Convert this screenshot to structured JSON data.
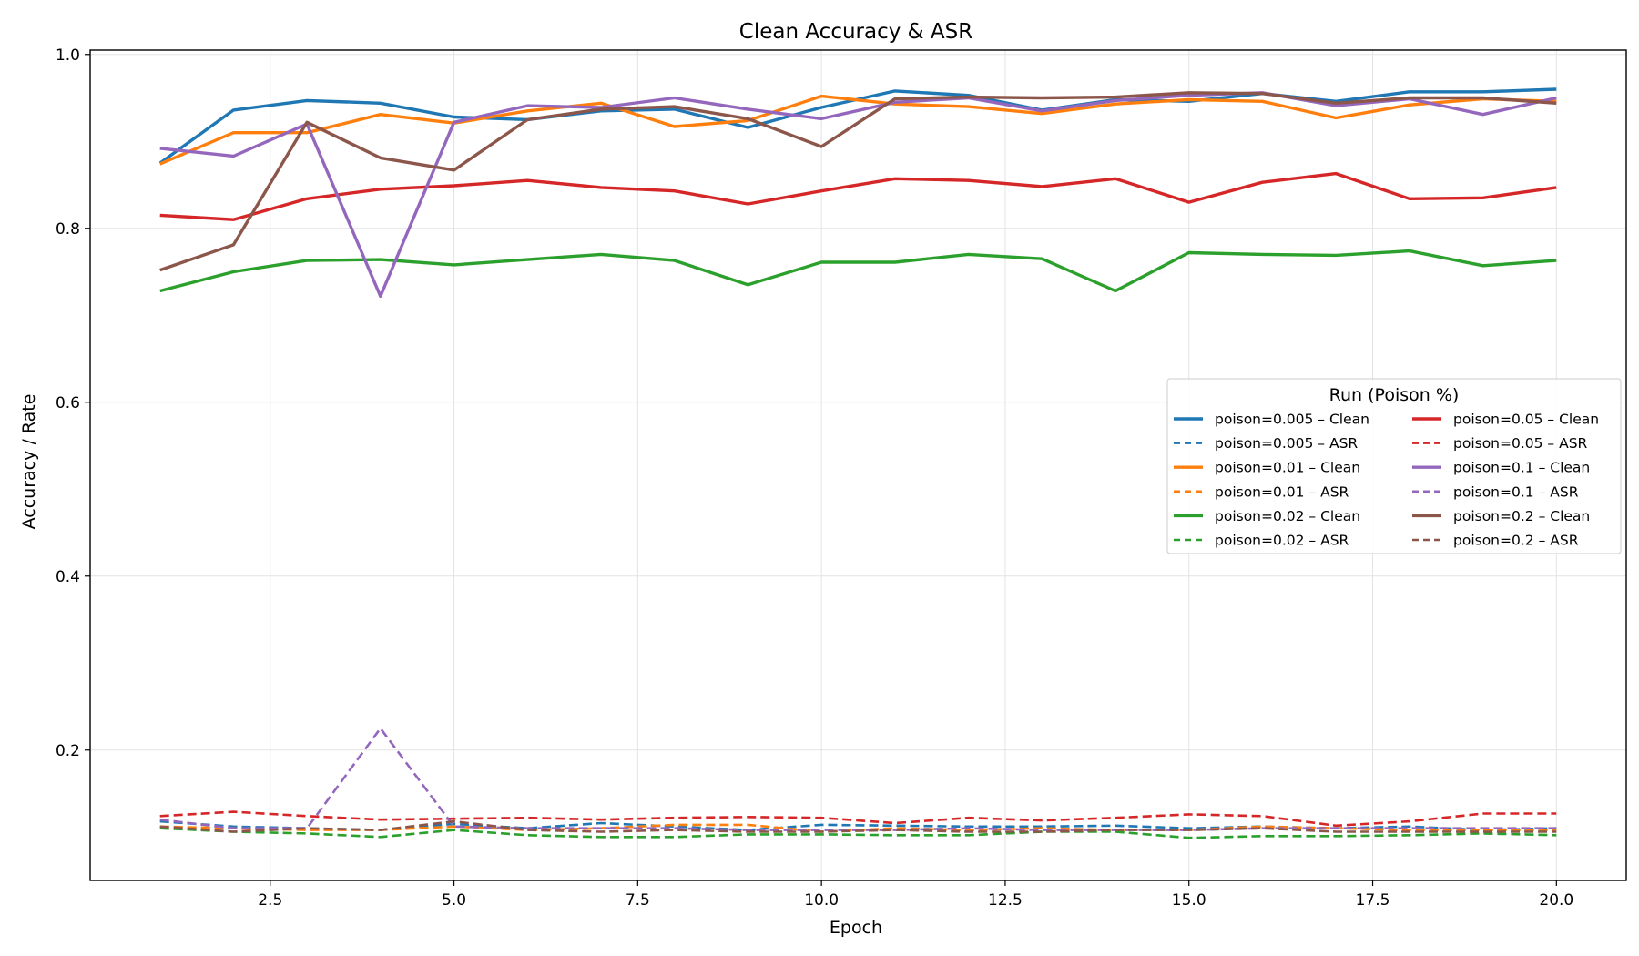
{
  "chart_data": {
    "type": "line",
    "title": "Clean Accuracy & ASR",
    "xlabel": "Epoch",
    "ylabel": "Accuracy / Rate",
    "xlim": [
      0.05,
      20.95
    ],
    "ylim": [
      0.05,
      1.005
    ],
    "xticks": [
      2.5,
      5.0,
      7.5,
      10.0,
      12.5,
      15.0,
      17.5,
      20.0
    ],
    "xtick_labels": [
      "2.5",
      "5.0",
      "7.5",
      "10.0",
      "12.5",
      "15.0",
      "17.5",
      "20.0"
    ],
    "yticks": [
      0.2,
      0.4,
      0.6,
      0.8,
      1.0
    ],
    "ytick_labels": [
      "0.2",
      "0.4",
      "0.6",
      "0.8",
      "1.0"
    ],
    "grid": true,
    "legend_title": "Run (Poison %)",
    "legend_position": "center-right",
    "x": [
      1,
      2,
      3,
      4,
      5,
      6,
      7,
      8,
      9,
      10,
      11,
      12,
      13,
      14,
      15,
      16,
      17,
      18,
      19,
      20
    ],
    "series": [
      {
        "name": "poison=0.005 – Clean",
        "color": "#1f77b4",
        "dash": "solid",
        "values": [
          0.875,
          0.936,
          0.947,
          0.944,
          0.928,
          0.925,
          0.935,
          0.937,
          0.916,
          0.939,
          0.958,
          0.953,
          0.936,
          0.948,
          0.946,
          0.955,
          0.946,
          0.957,
          0.957,
          0.96
        ]
      },
      {
        "name": "poison=0.005 – ASR",
        "color": "#1f77b4",
        "dash": "dashed",
        "values": [
          0.118,
          0.112,
          0.11,
          0.108,
          0.115,
          0.11,
          0.116,
          0.112,
          0.108,
          0.114,
          0.113,
          0.112,
          0.112,
          0.113,
          0.11,
          0.112,
          0.11,
          0.112,
          0.108,
          0.11
        ]
      },
      {
        "name": "poison=0.01 – Clean",
        "color": "#ff7f0e",
        "dash": "solid",
        "values": [
          0.874,
          0.91,
          0.91,
          0.931,
          0.921,
          0.935,
          0.944,
          0.917,
          0.924,
          0.952,
          0.943,
          0.94,
          0.932,
          0.943,
          0.948,
          0.946,
          0.927,
          0.942,
          0.949,
          0.946
        ]
      },
      {
        "name": "poison=0.01 – ASR",
        "color": "#ff7f0e",
        "dash": "dashed",
        "values": [
          0.112,
          0.11,
          0.108,
          0.108,
          0.112,
          0.108,
          0.11,
          0.114,
          0.114,
          0.106,
          0.11,
          0.108,
          0.11,
          0.108,
          0.108,
          0.112,
          0.11,
          0.108,
          0.108,
          0.108
        ]
      },
      {
        "name": "poison=0.02 – Clean",
        "color": "#2ca02c",
        "dash": "solid",
        "values": [
          0.728,
          0.75,
          0.763,
          0.764,
          0.758,
          0.764,
          0.77,
          0.763,
          0.735,
          0.761,
          0.761,
          0.77,
          0.765,
          0.728,
          0.772,
          0.77,
          0.769,
          0.774,
          0.757,
          0.763
        ]
      },
      {
        "name": "poison=0.02 – ASR",
        "color": "#2ca02c",
        "dash": "dashed",
        "values": [
          0.11,
          0.106,
          0.104,
          0.1,
          0.108,
          0.102,
          0.1,
          0.1,
          0.103,
          0.103,
          0.102,
          0.102,
          0.106,
          0.106,
          0.099,
          0.101,
          0.101,
          0.102,
          0.104,
          0.102
        ]
      },
      {
        "name": "poison=0.05 – Clean",
        "color": "#d62728",
        "dash": "solid",
        "values": [
          0.815,
          0.81,
          0.834,
          0.845,
          0.849,
          0.855,
          0.847,
          0.843,
          0.828,
          0.843,
          0.857,
          0.855,
          0.848,
          0.857,
          0.83,
          0.853,
          0.863,
          0.834,
          0.835,
          0.847
        ]
      },
      {
        "name": "poison=0.05 – ASR",
        "color": "#d62728",
        "dash": "dashed",
        "values": [
          0.124,
          0.129,
          0.124,
          0.12,
          0.121,
          0.122,
          0.12,
          0.122,
          0.123,
          0.122,
          0.116,
          0.122,
          0.119,
          0.122,
          0.126,
          0.124,
          0.113,
          0.118,
          0.127,
          0.127
        ]
      },
      {
        "name": "poison=0.1 – Clean",
        "color": "#9467bd",
        "dash": "solid",
        "values": [
          0.892,
          0.883,
          0.92,
          0.722,
          0.922,
          0.941,
          0.939,
          0.95,
          0.937,
          0.926,
          0.945,
          0.95,
          0.935,
          0.947,
          0.953,
          0.956,
          0.941,
          0.949,
          0.931,
          0.95
        ]
      },
      {
        "name": "poison=0.1 – ASR",
        "color": "#9467bd",
        "dash": "dashed",
        "values": [
          0.12,
          0.11,
          0.11,
          0.225,
          0.112,
          0.11,
          0.11,
          0.11,
          0.108,
          0.108,
          0.108,
          0.11,
          0.108,
          0.108,
          0.108,
          0.11,
          0.11,
          0.11,
          0.11,
          0.11
        ]
      },
      {
        "name": "poison=0.2 – Clean",
        "color": "#8c564b",
        "dash": "solid",
        "values": [
          0.752,
          0.781,
          0.922,
          0.881,
          0.867,
          0.925,
          0.937,
          0.94,
          0.926,
          0.894,
          0.949,
          0.951,
          0.95,
          0.951,
          0.956,
          0.955,
          0.944,
          0.95,
          0.95,
          0.944
        ]
      },
      {
        "name": "poison=0.2 – ASR",
        "color": "#8c564b",
        "dash": "dashed",
        "values": [
          0.112,
          0.106,
          0.11,
          0.108,
          0.118,
          0.108,
          0.106,
          0.108,
          0.106,
          0.106,
          0.108,
          0.106,
          0.106,
          0.108,
          0.108,
          0.11,
          0.106,
          0.106,
          0.106,
          0.106
        ]
      }
    ]
  }
}
